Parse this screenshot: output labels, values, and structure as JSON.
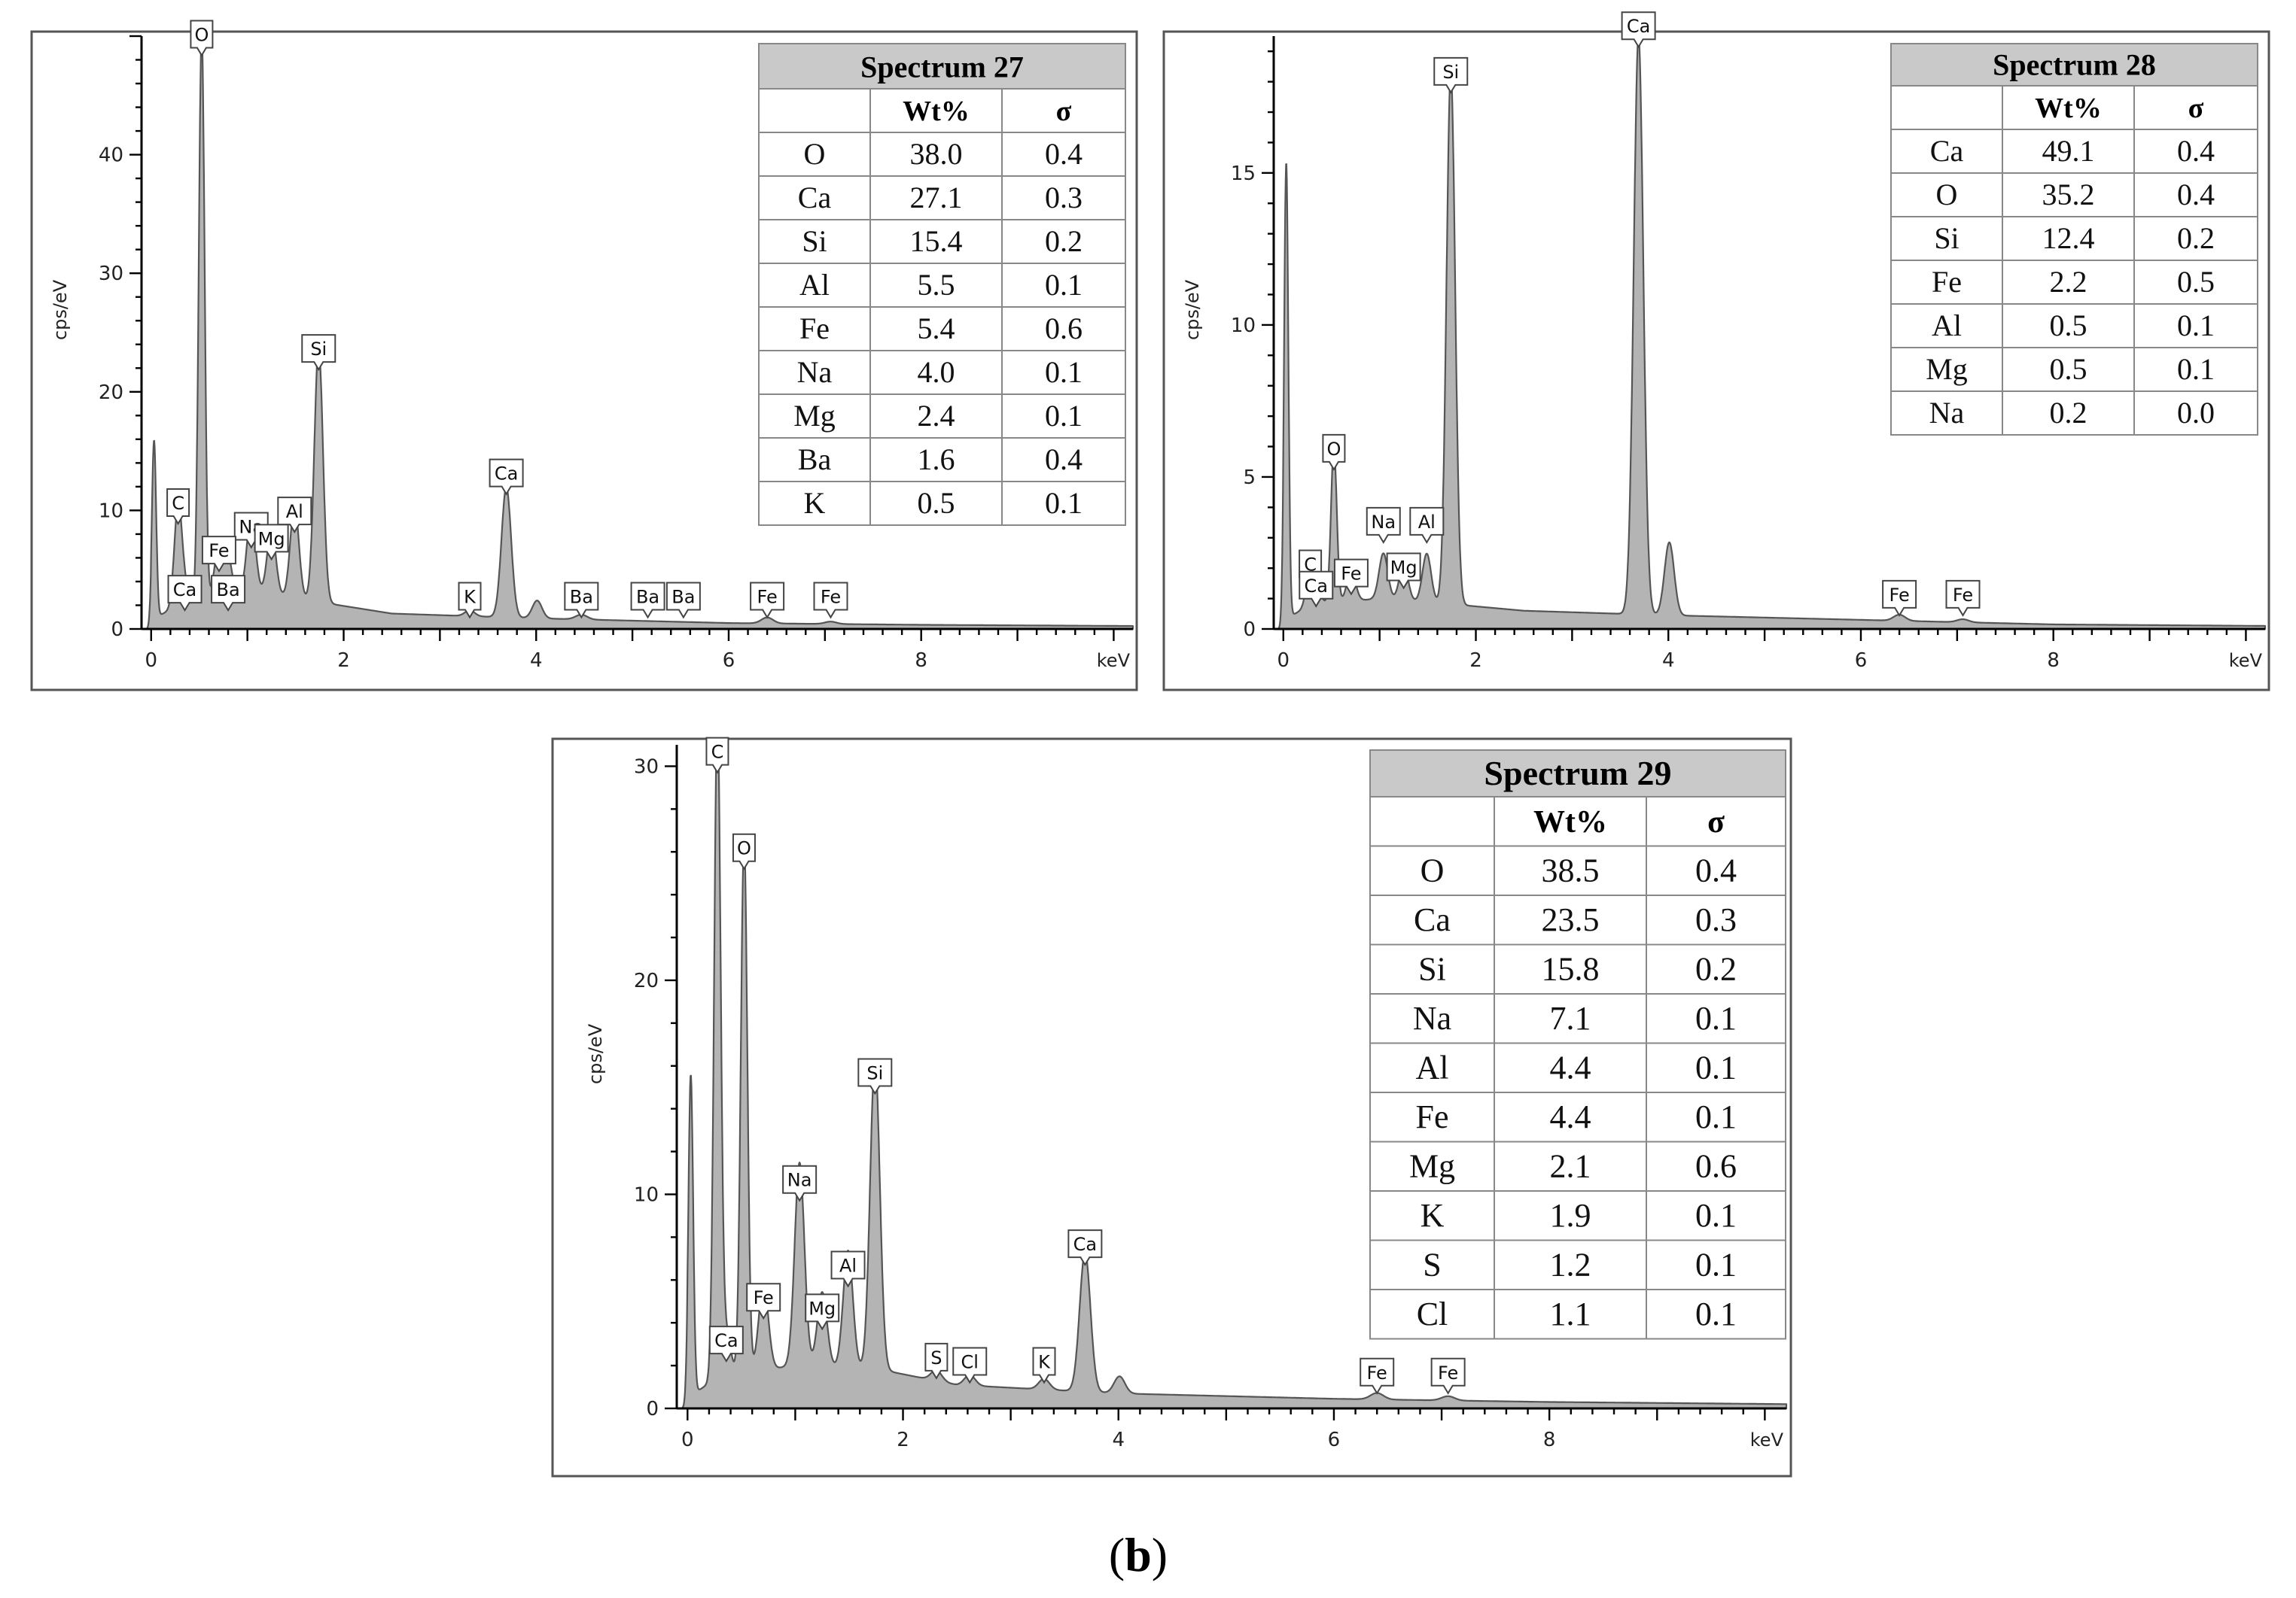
{
  "figure_label": {
    "open": "(",
    "letter": "b",
    "close": ")"
  },
  "chart_data": [
    {
      "type": "line",
      "title": "Spectrum 27",
      "xlabel": "keV",
      "ylabel": "cps/eV",
      "xlim": [
        -0.1,
        10.2
      ],
      "ylim": [
        0,
        50
      ],
      "x_ticks": [
        0,
        2,
        4,
        6,
        8
      ],
      "y_ticks": [
        0,
        10,
        20,
        30,
        40
      ],
      "peaks": [
        {
          "x": 0.03,
          "y": 15,
          "w": 0.022
        },
        {
          "x": 0.28,
          "y": 8.5,
          "w": 0.04
        },
        {
          "x": 0.35,
          "y": 1.2,
          "w": 0.04
        },
        {
          "x": 0.525,
          "y": 48,
          "w": 0.03
        },
        {
          "x": 0.705,
          "y": 4.5,
          "w": 0.045
        },
        {
          "x": 0.8,
          "y": 3.0,
          "w": 0.04
        },
        {
          "x": 1.04,
          "y": 6.5,
          "w": 0.045
        },
        {
          "x": 1.25,
          "y": 5.5,
          "w": 0.045
        },
        {
          "x": 1.49,
          "y": 7.8,
          "w": 0.045
        },
        {
          "x": 1.74,
          "y": 21.5,
          "w": 0.045
        },
        {
          "x": 3.31,
          "y": 0.5,
          "w": 0.05
        },
        {
          "x": 3.69,
          "y": 11.0,
          "w": 0.05
        },
        {
          "x": 4.01,
          "y": 1.5,
          "w": 0.05
        },
        {
          "x": 4.47,
          "y": 0.4,
          "w": 0.06
        },
        {
          "x": 6.4,
          "y": 0.5,
          "w": 0.06
        },
        {
          "x": 7.06,
          "y": 0.2,
          "w": 0.06
        }
      ],
      "background": [
        {
          "x": 0.0,
          "y": 0.8
        },
        {
          "x": 0.3,
          "y": 2.0
        },
        {
          "x": 1.0,
          "y": 3.2
        },
        {
          "x": 1.8,
          "y": 2.2
        },
        {
          "x": 2.5,
          "y": 1.3
        },
        {
          "x": 4.0,
          "y": 0.9
        },
        {
          "x": 6.0,
          "y": 0.5
        },
        {
          "x": 8.0,
          "y": 0.35
        },
        {
          "x": 10.2,
          "y": 0.25
        }
      ],
      "peak_labels": [
        {
          "text": "O",
          "x": 0.525
        },
        {
          "text": "Si",
          "x": 1.74
        },
        {
          "text": "C",
          "x": 0.28
        },
        {
          "text": "Na",
          "x": 1.04
        },
        {
          "text": "Al",
          "x": 1.49
        },
        {
          "text": "Fe",
          "x": 0.705
        },
        {
          "text": "Mg",
          "x": 1.25
        },
        {
          "text": "Ca",
          "x": 0.35
        },
        {
          "text": "Ba",
          "x": 0.8
        },
        {
          "text": "Ca",
          "x": 3.69
        },
        {
          "text": "K",
          "x": 3.31
        },
        {
          "text": "Ba",
          "x": 4.47
        },
        {
          "text": "Ba",
          "x": 5.16
        },
        {
          "text": "Ba",
          "x": 5.53
        },
        {
          "text": "Fe",
          "x": 6.4
        },
        {
          "text": "Fe",
          "x": 7.06
        }
      ],
      "table": {
        "title": "Spectrum 27",
        "columns": [
          "",
          "Wt%",
          "σ"
        ],
        "rows": [
          [
            "O",
            "38.0",
            "0.4"
          ],
          [
            "Ca",
            "27.1",
            "0.3"
          ],
          [
            "Si",
            "15.4",
            "0.2"
          ],
          [
            "Al",
            "5.5",
            "0.1"
          ],
          [
            "Fe",
            "5.4",
            "0.6"
          ],
          [
            "Na",
            "4.0",
            "0.1"
          ],
          [
            "Mg",
            "2.4",
            "0.1"
          ],
          [
            "Ba",
            "1.6",
            "0.4"
          ],
          [
            "K",
            "0.5",
            "0.1"
          ]
        ]
      }
    },
    {
      "type": "line",
      "title": "Spectrum 28",
      "xlabel": "keV",
      "ylabel": "cps/eV",
      "xlim": [
        -0.1,
        10.2
      ],
      "ylim": [
        0,
        19.5
      ],
      "x_ticks": [
        0,
        2,
        4,
        6,
        8
      ],
      "y_ticks": [
        0,
        5,
        10,
        15
      ],
      "peaks": [
        {
          "x": 0.03,
          "y": 15,
          "w": 0.022
        },
        {
          "x": 0.28,
          "y": 1.3,
          "w": 0.04
        },
        {
          "x": 0.34,
          "y": 0.8,
          "w": 0.04
        },
        {
          "x": 0.525,
          "y": 5.1,
          "w": 0.03
        },
        {
          "x": 0.705,
          "y": 1.0,
          "w": 0.045
        },
        {
          "x": 1.04,
          "y": 1.5,
          "w": 0.045
        },
        {
          "x": 1.25,
          "y": 1.2,
          "w": 0.045
        },
        {
          "x": 1.49,
          "y": 1.6,
          "w": 0.045
        },
        {
          "x": 1.74,
          "y": 17.5,
          "w": 0.045
        },
        {
          "x": 3.69,
          "y": 19.0,
          "w": 0.05
        },
        {
          "x": 4.01,
          "y": 2.4,
          "w": 0.05
        },
        {
          "x": 6.4,
          "y": 0.2,
          "w": 0.06
        },
        {
          "x": 7.06,
          "y": 0.1,
          "w": 0.06
        }
      ],
      "background": [
        {
          "x": 0.0,
          "y": 0.3
        },
        {
          "x": 0.3,
          "y": 0.8
        },
        {
          "x": 1.0,
          "y": 1.0
        },
        {
          "x": 1.8,
          "y": 0.8
        },
        {
          "x": 2.5,
          "y": 0.6
        },
        {
          "x": 4.0,
          "y": 0.45
        },
        {
          "x": 6.0,
          "y": 0.3
        },
        {
          "x": 8.0,
          "y": 0.15
        },
        {
          "x": 10.2,
          "y": 0.1
        }
      ],
      "peak_labels": [
        {
          "text": "Si",
          "x": 1.74
        },
        {
          "text": "Ca",
          "x": 3.69
        },
        {
          "text": "O",
          "x": 0.525
        },
        {
          "text": "Na",
          "x": 1.04
        },
        {
          "text": "Al",
          "x": 1.49
        },
        {
          "text": "C",
          "x": 0.28
        },
        {
          "text": "Fe",
          "x": 0.705
        },
        {
          "text": "Mg",
          "x": 1.25
        },
        {
          "text": "Ca",
          "x": 0.34
        },
        {
          "text": "Fe",
          "x": 6.4
        },
        {
          "text": "Fe",
          "x": 7.06
        }
      ],
      "table": {
        "title": "Spectrum 28",
        "columns": [
          "",
          "Wt%",
          "σ"
        ],
        "rows": [
          [
            "Ca",
            "49.1",
            "0.4"
          ],
          [
            "O",
            "35.2",
            "0.4"
          ],
          [
            "Si",
            "12.4",
            "0.2"
          ],
          [
            "Fe",
            "2.2",
            "0.5"
          ],
          [
            "Al",
            "0.5",
            "0.1"
          ],
          [
            "Mg",
            "0.5",
            "0.1"
          ],
          [
            "Na",
            "0.2",
            "0.0"
          ]
        ]
      }
    },
    {
      "type": "line",
      "title": "Spectrum 29",
      "xlabel": "keV",
      "ylabel": "cps/eV",
      "xlim": [
        -0.1,
        10.2
      ],
      "ylim": [
        0,
        31
      ],
      "x_ticks": [
        0,
        2,
        4,
        6,
        8
      ],
      "y_ticks": [
        0,
        10,
        20,
        30
      ],
      "peaks": [
        {
          "x": 0.03,
          "y": 15,
          "w": 0.022
        },
        {
          "x": 0.277,
          "y": 31,
          "w": 0.03
        },
        {
          "x": 0.36,
          "y": 2.0,
          "w": 0.04
        },
        {
          "x": 0.525,
          "y": 25,
          "w": 0.03
        },
        {
          "x": 0.705,
          "y": 4.0,
          "w": 0.045
        },
        {
          "x": 1.04,
          "y": 9.5,
          "w": 0.045
        },
        {
          "x": 1.25,
          "y": 3.5,
          "w": 0.045
        },
        {
          "x": 1.49,
          "y": 5.5,
          "w": 0.045
        },
        {
          "x": 1.74,
          "y": 14.5,
          "w": 0.045
        },
        {
          "x": 2.31,
          "y": 0.5,
          "w": 0.05
        },
        {
          "x": 2.62,
          "y": 0.5,
          "w": 0.05
        },
        {
          "x": 3.31,
          "y": 0.5,
          "w": 0.05
        },
        {
          "x": 3.69,
          "y": 6.5,
          "w": 0.05
        },
        {
          "x": 4.01,
          "y": 0.8,
          "w": 0.05
        },
        {
          "x": 6.4,
          "y": 0.3,
          "w": 0.06
        },
        {
          "x": 7.06,
          "y": 0.2,
          "w": 0.06
        }
      ],
      "background": [
        {
          "x": 0.0,
          "y": 0.5
        },
        {
          "x": 0.3,
          "y": 1.5
        },
        {
          "x": 1.0,
          "y": 2.0
        },
        {
          "x": 1.8,
          "y": 1.8
        },
        {
          "x": 2.5,
          "y": 1.1
        },
        {
          "x": 4.0,
          "y": 0.7
        },
        {
          "x": 6.0,
          "y": 0.45
        },
        {
          "x": 8.0,
          "y": 0.3
        },
        {
          "x": 10.2,
          "y": 0.2
        }
      ],
      "peak_labels": [
        {
          "text": "C",
          "x": 0.277
        },
        {
          "text": "O",
          "x": 0.525
        },
        {
          "text": "Si",
          "x": 1.74
        },
        {
          "text": "Na",
          "x": 1.04
        },
        {
          "text": "Al",
          "x": 1.49
        },
        {
          "text": "Fe",
          "x": 0.705
        },
        {
          "text": "Mg",
          "x": 1.25
        },
        {
          "text": "Ca",
          "x": 0.36
        },
        {
          "text": "Ca",
          "x": 3.69
        },
        {
          "text": "S",
          "x": 2.31
        },
        {
          "text": "Cl",
          "x": 2.62
        },
        {
          "text": "K",
          "x": 3.31
        },
        {
          "text": "Fe",
          "x": 6.4
        },
        {
          "text": "Fe",
          "x": 7.06
        }
      ],
      "table": {
        "title": "Spectrum 29",
        "columns": [
          "",
          "Wt%",
          "σ"
        ],
        "rows": [
          [
            "O",
            "38.5",
            "0.4"
          ],
          [
            "Ca",
            "23.5",
            "0.3"
          ],
          [
            "Si",
            "15.8",
            "0.2"
          ],
          [
            "Na",
            "7.1",
            "0.1"
          ],
          [
            "Al",
            "4.4",
            "0.1"
          ],
          [
            "Fe",
            "4.4",
            "0.1"
          ],
          [
            "Mg",
            "2.1",
            "0.6"
          ],
          [
            "K",
            "1.9",
            "0.1"
          ],
          [
            "S",
            "1.2",
            "0.1"
          ],
          [
            "Cl",
            "1.1",
            "0.1"
          ]
        ]
      }
    }
  ]
}
